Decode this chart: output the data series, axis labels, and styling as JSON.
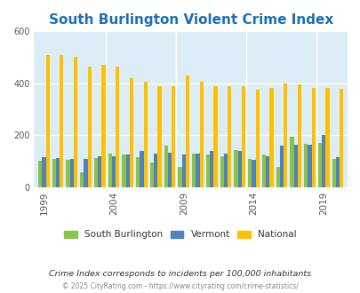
{
  "title": "South Burlington Violent Crime Index",
  "years": [
    1999,
    2000,
    2001,
    2002,
    2003,
    2004,
    2005,
    2006,
    2007,
    2008,
    2009,
    2010,
    2011,
    2012,
    2013,
    2014,
    2015,
    2016,
    2017,
    2018,
    2019,
    2020
  ],
  "south_burlington": [
    103,
    110,
    105,
    57,
    112,
    130,
    128,
    115,
    95,
    160,
    80,
    130,
    128,
    120,
    145,
    110,
    127,
    80,
    195,
    167,
    170,
    110
  ],
  "vermont": [
    117,
    112,
    110,
    110,
    120,
    118,
    125,
    140,
    130,
    135,
    128,
    130,
    140,
    130,
    140,
    105,
    120,
    160,
    165,
    165,
    200,
    115
  ],
  "national": [
    508,
    510,
    503,
    465,
    470,
    465,
    420,
    405,
    388,
    391,
    430,
    405,
    388,
    391,
    388,
    375,
    382,
    400,
    397,
    384,
    381,
    378
  ],
  "sb_color": "#8bc34a",
  "vt_color": "#4f81bd",
  "nat_color": "#ffc000",
  "plot_bg": "#ddedf5",
  "ylim": [
    0,
    600
  ],
  "yticks": [
    0,
    200,
    400,
    600
  ],
  "xlabel_ticks": [
    1999,
    2004,
    2009,
    2014,
    2019
  ],
  "subtitle": "Crime Index corresponds to incidents per 100,000 inhabitants",
  "footer": "© 2025 CityRating.com - https://www.cityrating.com/crime-statistics/",
  "title_color": "#1a6fba",
  "legend_labels": [
    "South Burlington",
    "Vermont",
    "National"
  ],
  "bar_width": 0.27
}
